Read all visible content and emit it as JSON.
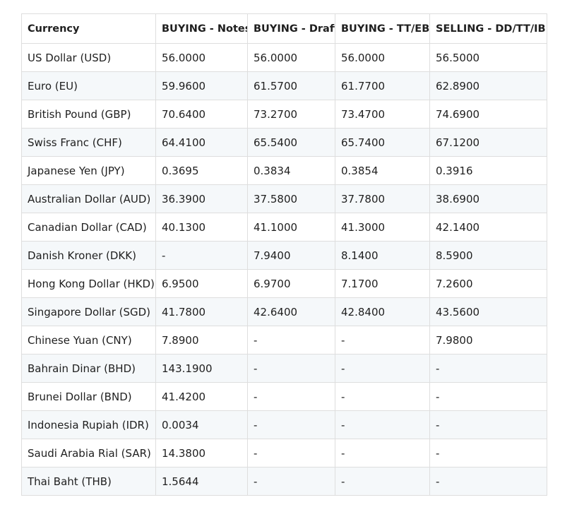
{
  "table": {
    "headers": [
      "Currency",
      "BUYING - Notes",
      "BUYING - Draft",
      "BUYING - TT/EB",
      "SELLING - DD/TT/IB"
    ],
    "rows": [
      [
        "US Dollar (USD)",
        "56.0000",
        "56.0000",
        "56.0000",
        "56.5000"
      ],
      [
        "Euro (EU)",
        "59.9600",
        "61.5700",
        "61.7700",
        "62.8900"
      ],
      [
        "British Pound (GBP)",
        "70.6400",
        "73.2700",
        "73.4700",
        "74.6900"
      ],
      [
        "Swiss Franc (CHF)",
        "64.4100",
        "65.5400",
        "65.7400",
        "67.1200"
      ],
      [
        "Japanese Yen (JPY)",
        "0.3695",
        "0.3834",
        "0.3854",
        "0.3916"
      ],
      [
        "Australian Dollar (AUD)",
        "36.3900",
        "37.5800",
        "37.7800",
        "38.6900"
      ],
      [
        "Canadian Dollar (CAD)",
        "40.1300",
        "41.1000",
        "41.3000",
        "42.1400"
      ],
      [
        "Danish Kroner (DKK)",
        "-",
        "7.9400",
        "8.1400",
        "8.5900"
      ],
      [
        "Hong Kong Dollar (HKD)",
        "6.9500",
        "6.9700",
        "7.1700",
        "7.2600"
      ],
      [
        "Singapore Dollar (SGD)",
        "41.7800",
        "42.6400",
        "42.8400",
        "43.5600"
      ],
      [
        "Chinese Yuan (CNY)",
        "7.8900",
        "-",
        "-",
        "7.9800"
      ],
      [
        "Bahrain Dinar (BHD)",
        "143.1900",
        "-",
        "-",
        "-"
      ],
      [
        "Brunei Dollar (BND)",
        "41.4200",
        "-",
        "-",
        "-"
      ],
      [
        "Indonesia Rupiah (IDR)",
        "0.0034",
        "-",
        "-",
        "-"
      ],
      [
        "Saudi Arabia Rial (SAR)",
        "14.3800",
        "-",
        "-",
        "-"
      ],
      [
        "Thai Baht (THB)",
        "1.5644",
        "-",
        "-",
        "-"
      ]
    ]
  }
}
